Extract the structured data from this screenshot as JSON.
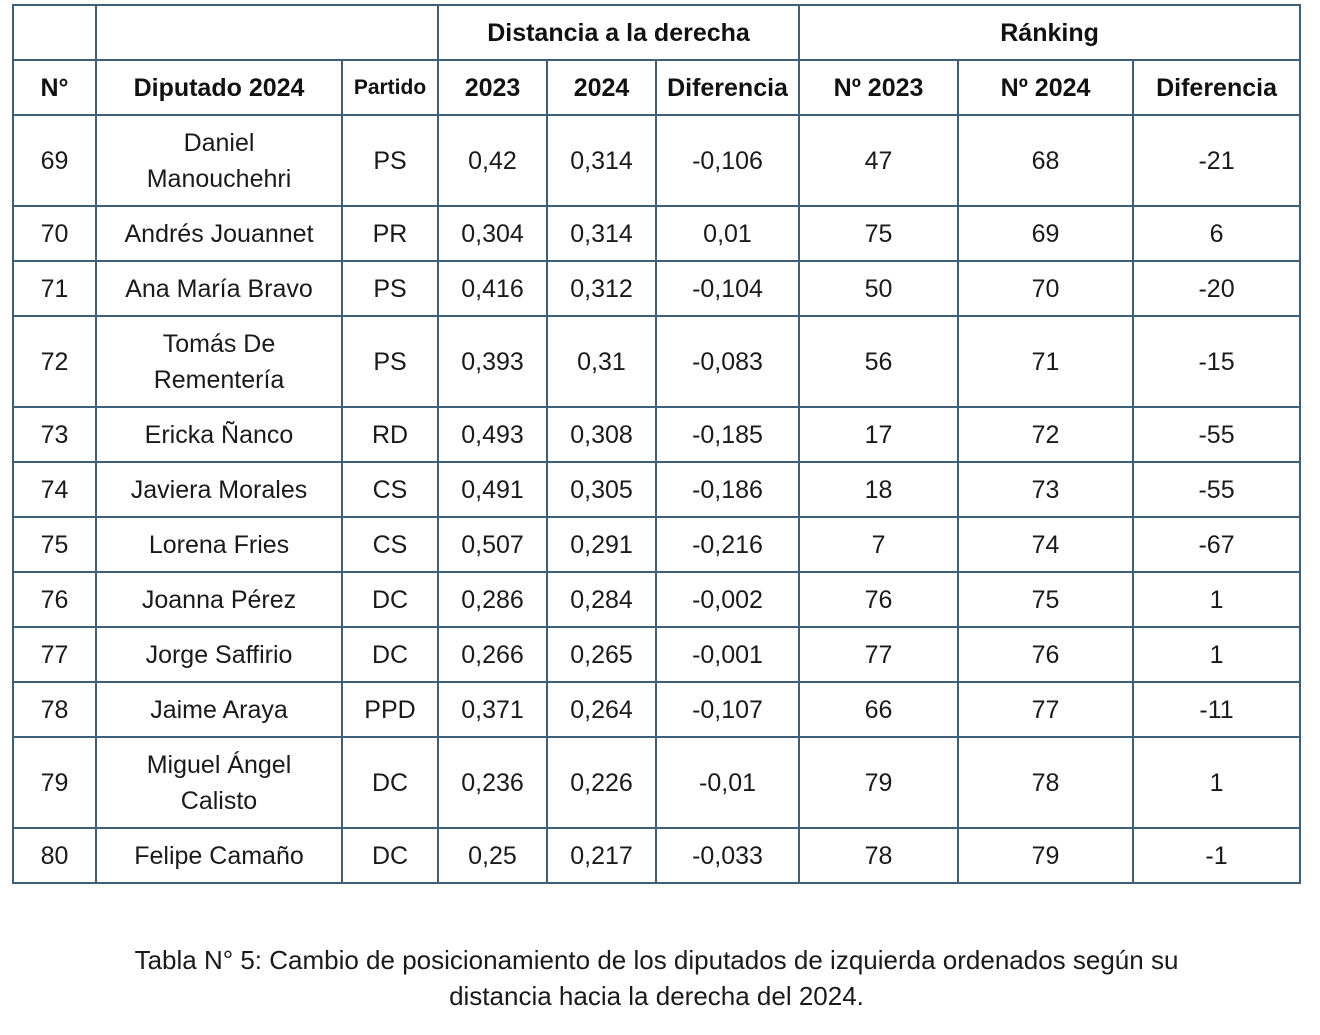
{
  "table": {
    "group_headers": {
      "distancia": "Distancia a la derecha",
      "ranking": "Ránking"
    },
    "column_headers": [
      "N°",
      "Diputado 2024",
      "Partido",
      "2023",
      "2024",
      "Diferencia",
      "Nº 2023",
      "Nº 2024",
      "Diferencia"
    ],
    "rows": [
      [
        "69",
        "Daniel Manouchehri",
        "PS",
        "0,42",
        "0,314",
        "-0,106",
        "47",
        "68",
        "-21"
      ],
      [
        "70",
        "Andrés Jouannet",
        "PR",
        "0,304",
        "0,314",
        "0,01",
        "75",
        "69",
        "6"
      ],
      [
        "71",
        "Ana María Bravo",
        "PS",
        "0,416",
        "0,312",
        "-0,104",
        "50",
        "70",
        "-20"
      ],
      [
        "72",
        "Tomás De Rementería",
        "PS",
        "0,393",
        "0,31",
        "-0,083",
        "56",
        "71",
        "-15"
      ],
      [
        "73",
        "Ericka Ñanco",
        "RD",
        "0,493",
        "0,308",
        "-0,185",
        "17",
        "72",
        "-55"
      ],
      [
        "74",
        "Javiera Morales",
        "CS",
        "0,491",
        "0,305",
        "-0,186",
        "18",
        "73",
        "-55"
      ],
      [
        "75",
        "Lorena Fries",
        "CS",
        "0,507",
        "0,291",
        "-0,216",
        "7",
        "74",
        "-67"
      ],
      [
        "76",
        "Joanna Pérez",
        "DC",
        "0,286",
        "0,284",
        "-0,002",
        "76",
        "75",
        "1"
      ],
      [
        "77",
        "Jorge Saffirio",
        "DC",
        "0,266",
        "0,265",
        "-0,001",
        "77",
        "76",
        "1"
      ],
      [
        "78",
        "Jaime Araya",
        "PPD",
        "0,371",
        "0,264",
        "-0,107",
        "66",
        "77",
        "-11"
      ],
      [
        "79",
        "Miguel Ángel Calisto",
        "DC",
        "0,236",
        "0,226",
        "-0,01",
        "79",
        "78",
        "1"
      ],
      [
        "80",
        "Felipe Camaño",
        "DC",
        "0,25",
        "0,217",
        "-0,033",
        "78",
        "79",
        "-1"
      ]
    ]
  },
  "caption": {
    "line1": "Tabla N° 5: Cambio de posicionamiento de los diputados de izquierda ordenados según su",
    "line2": "distancia hacia la derecha del 2024."
  }
}
